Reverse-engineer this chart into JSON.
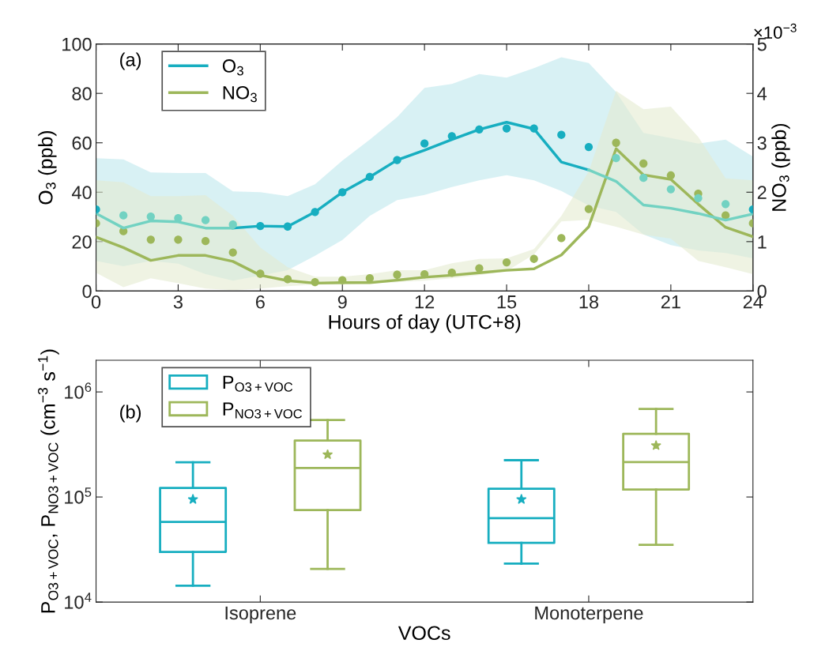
{
  "chart_data": [
    {
      "type": "line",
      "xlabel": "Hours of day (UTC+8)",
      "ylabel": "O$_{3}$ (ppb)",
      "y2label": "NO$_{3}$ (ppb)",
      "x": [
        0,
        1,
        2,
        3,
        4,
        5,
        6,
        7,
        8,
        9,
        10,
        11,
        12,
        13,
        14,
        15,
        16,
        17,
        18,
        19,
        20,
        21,
        22,
        23,
        24
      ],
      "xlim": [
        0,
        24
      ],
      "xticks": [
        0,
        3,
        6,
        9,
        12,
        15,
        18,
        21,
        24
      ],
      "ylim": [
        0,
        100
      ],
      "yticks": [
        0,
        20,
        40,
        60,
        80,
        100
      ],
      "y2lim": [
        0,
        5
      ],
      "y2ticks": [
        0,
        1,
        2,
        3,
        4,
        5
      ],
      "legend": "top left",
      "grid": false,
      "annotations": [
        "(a)",
        "×10$^{−3}$"
      ],
      "series": [
        {
          "name": "O$_{3}$",
          "type": "line",
          "color": "#17aec0",
          "line_style": "solid",
          "values": [
            null,
            null,
            null,
            null,
            null,
            25.5,
            26.3,
            26.1,
            32.0,
            40.0,
            46.2,
            53.0,
            57.0,
            61.3,
            65.4,
            68.3,
            65.6,
            52.2,
            49.0,
            null,
            null,
            null,
            null,
            null,
            null
          ],
          "lower": [
            12.2,
            10.0,
            12.2,
            11.1,
            6.8,
            4.2,
            6.3,
            8.4,
            14.3,
            20.7,
            30.4,
            36.8,
            38.9,
            42.1,
            44.8,
            46.9,
            44.8,
            40.5,
            34.6,
            32.0,
            22.9,
            18.6,
            16.4,
            15.4,
            13.2
          ],
          "upper": [
            53.8,
            53.3,
            48.0,
            47.8,
            47.8,
            40.3,
            40.0,
            38.4,
            43.2,
            52.8,
            61.3,
            70.4,
            82.2,
            83.8,
            87.8,
            86.4,
            90.2,
            94.6,
            92.3,
            80.5,
            64.0,
            61.9,
            59.7,
            61.3,
            54.4
          ]
        },
        {
          "type": "line",
          "color": "#72d2c2",
          "line_style": "solid",
          "values": [
            31.4,
            25.5,
            28.4,
            28.0,
            25.5,
            25.5,
            null,
            null,
            null,
            null,
            null,
            null,
            null,
            null,
            null,
            null,
            null,
            null,
            49.0,
            44.4,
            34.8,
            33.5,
            31.4,
            28.7,
            31.2
          ]
        },
        {
          "type": "scatter",
          "marker": "circle",
          "colors": [
            "#17aec0",
            "#72d2c2",
            "#72d2c2",
            "#72d2c2",
            "#72d2c2",
            "#72d2c2",
            "#17aec0",
            "#17aec0",
            "#17aec0",
            "#17aec0",
            "#17aec0",
            "#17aec0",
            "#17aec0",
            "#17aec0",
            "#17aec0",
            "#17aec0",
            "#17aec0",
            "#17aec0",
            "#17aec0",
            "#72d2c2",
            "#72d2c2",
            "#72d2c2",
            "#72d2c2",
            "#72d2c2",
            "#17aec0"
          ],
          "values": [
            33.0,
            30.6,
            30.1,
            29.5,
            28.7,
            26.9,
            26.3,
            26.1,
            32.0,
            40.0,
            46.2,
            53.0,
            59.7,
            62.7,
            65.4,
            65.8,
            65.8,
            63.2,
            58.3,
            53.8,
            45.8,
            41.2,
            37.6,
            35.2,
            33.0
          ]
        },
        {
          "name": "NO$_{3}$",
          "type": "line",
          "axis": "y2",
          "color": "#9db75a",
          "line_style": "solid",
          "values": [
            1.09,
            0.88,
            0.62,
            0.72,
            0.72,
            0.6,
            0.32,
            0.21,
            0.16,
            0.17,
            0.17,
            0.22,
            0.28,
            0.32,
            0.37,
            0.42,
            0.45,
            0.73,
            1.3,
            2.88,
            2.35,
            2.26,
            1.76,
            1.29,
            1.1
          ],
          "lower": [
            0.37,
            0.08,
            0.26,
            0.16,
            0.05,
            0.02,
            0.05,
            0.1,
            0.13,
            0.13,
            0.16,
            0.18,
            0.21,
            0.26,
            0.32,
            0.4,
            0.74,
            1.41,
            1.44,
            1.3,
            1.14,
            1.06,
            0.61,
            0.48,
            0.34
          ],
          "upper": [
            2.24,
            2.2,
            1.92,
            1.92,
            1.94,
            1.52,
            0.88,
            0.48,
            0.29,
            0.29,
            0.34,
            0.42,
            0.42,
            0.56,
            0.65,
            0.66,
            0.85,
            1.52,
            2.42,
            4.05,
            3.68,
            3.73,
            3.12,
            2.28,
            2.24
          ]
        },
        {
          "type": "scatter",
          "axis": "y2",
          "marker": "circle",
          "color": "#9db75a",
          "values": [
            1.37,
            1.21,
            1.04,
            1.04,
            1.01,
            0.78,
            0.35,
            0.24,
            0.18,
            0.22,
            0.26,
            0.33,
            0.34,
            0.37,
            0.46,
            0.58,
            0.65,
            1.07,
            1.66,
            3.0,
            2.58,
            2.34,
            1.97,
            1.53,
            1.37
          ]
        }
      ]
    },
    {
      "type": "box",
      "xlabel": "VOCs",
      "ylabel": "P$_{O3+VOC}$, P$_{NO3+VOC}$ (cm$^{−3}$ s$^{−1}$)",
      "categories": [
        "Isoprene",
        "Monoterpene"
      ],
      "log": true,
      "ylim": [
        10000,
        2000000
      ],
      "yticks": [
        {
          "value": 10000,
          "label": "10$^{4}$"
        },
        {
          "value": 100000,
          "label": "10$^{5}$"
        },
        {
          "value": 1000000,
          "label": "10$^{6}$"
        }
      ],
      "legend": "top left",
      "grid": false,
      "annotations": [
        "(b)"
      ],
      "series": [
        {
          "name": "P$_{O3+VOC}$",
          "color": "#17aec0",
          "boxes": [
            {
              "low": 14300,
              "q1": 30000,
              "median": 58000,
              "q3": 122000,
              "high": 214000,
              "mean": 95000
            },
            {
              "low": 23200,
              "q1": 36600,
              "median": 63000,
              "q3": 120000,
              "high": 224000,
              "mean": 95000
            }
          ]
        },
        {
          "name": "P$_{NO3+VOC}$",
          "color": "#9db75a",
          "boxes": [
            {
              "low": 20700,
              "q1": 75000,
              "median": 189000,
              "q3": 345000,
              "high": 540000,
              "mean": 253000
            },
            {
              "low": 35000,
              "q1": 118000,
              "median": 215000,
              "q3": 400000,
              "high": 690000,
              "mean": 309000
            }
          ]
        }
      ]
    }
  ]
}
